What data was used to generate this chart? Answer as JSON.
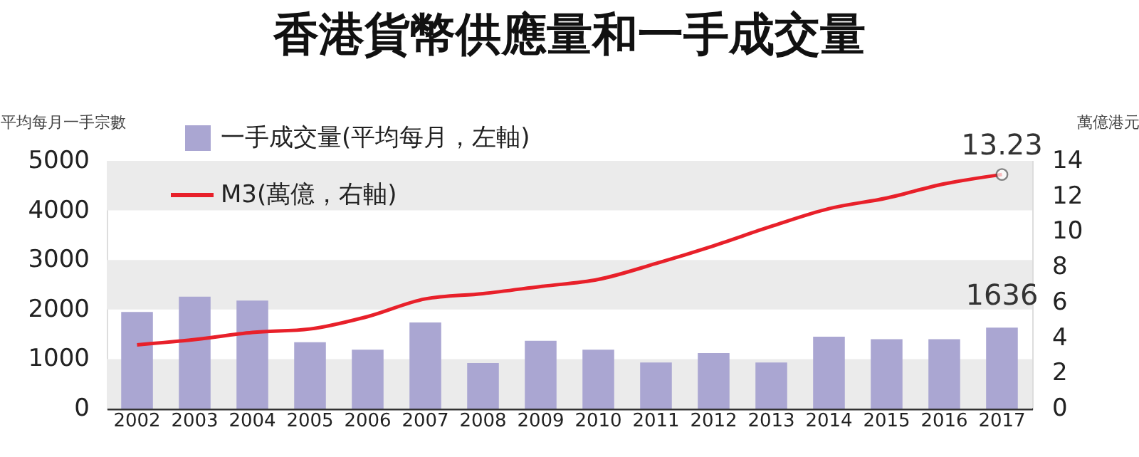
{
  "chart_data": {
    "type": "bar",
    "title": "香港貨幣供應量和一手成交量",
    "ylabel": "平均每月一手宗數",
    "y2label": "萬億港元",
    "categories": [
      "2002",
      "2003",
      "2004",
      "2005",
      "2006",
      "2007",
      "2008",
      "2009",
      "2010",
      "2011",
      "2012",
      "2013",
      "2014",
      "2015",
      "2016",
      "2017"
    ],
    "series": [
      {
        "name": "一手成交量(平均每月，左軸)",
        "color": "#aaa6d2",
        "values": [
          1950,
          2260,
          2180,
          1340,
          1190,
          1740,
          920,
          1370,
          1190,
          930,
          1120,
          930,
          1450,
          1400,
          1400,
          1636
        ],
        "value_labels": [
          null,
          null,
          null,
          null,
          null,
          null,
          null,
          null,
          null,
          null,
          null,
          null,
          null,
          null,
          null,
          "1636"
        ]
      },
      {
        "name": "M3(萬億，右軸)",
        "type": "line",
        "axis": "y2",
        "color": "#e8202a",
        "values": [
          3.6,
          3.9,
          4.3,
          4.5,
          5.2,
          6.2,
          6.5,
          6.9,
          7.3,
          8.2,
          9.2,
          10.3,
          11.3,
          11.9,
          12.7,
          13.23
        ],
        "value_labels": [
          null,
          null,
          null,
          null,
          null,
          null,
          null,
          null,
          null,
          null,
          null,
          null,
          null,
          null,
          null,
          "13.23"
        ]
      }
    ],
    "ylim": [
      0,
      5000
    ],
    "yticks": [
      0,
      1000,
      2000,
      3000,
      4000,
      5000
    ],
    "y2lim": [
      0,
      14
    ],
    "y2ticks": [
      0,
      2,
      4,
      6,
      8,
      10,
      12,
      14
    ],
    "bands": [
      {
        "axis": "y",
        "from": 0,
        "to": 1000,
        "color": "#ebebeb"
      },
      {
        "axis": "y",
        "from": 2000,
        "to": 3000,
        "color": "#ebebeb"
      },
      {
        "axis": "y",
        "from": 4000,
        "to": 5000,
        "color": "#ebebeb"
      }
    ],
    "grid": false,
    "legend": "top left"
  }
}
